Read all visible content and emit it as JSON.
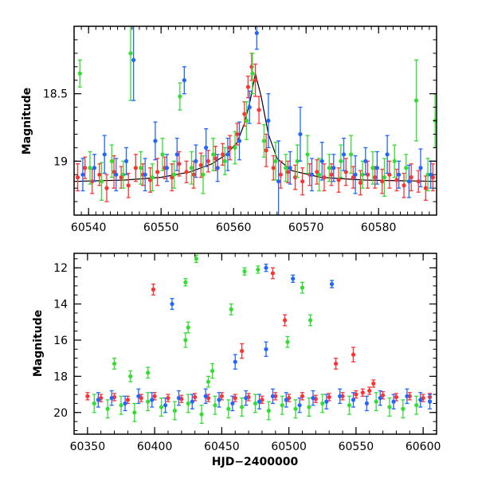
{
  "chart_data": [
    {
      "type": "scatter",
      "title": "",
      "xlabel": "",
      "ylabel": "Magnitude",
      "xlim": [
        60538,
        60588
      ],
      "ylim": [
        19.4,
        18.0
      ],
      "y_inverted": true,
      "grid": false,
      "legend": "none",
      "xticks": [
        60540,
        60550,
        60560,
        60570,
        60580
      ],
      "yticks": [
        18.5,
        19
      ],
      "ytick_labels": [
        "18.5",
        "19"
      ],
      "series": [
        {
          "color": "#ff3333",
          "x": [
            60538.5,
            60539.5,
            60540.5,
            60541.5,
            60542.5,
            60543.5,
            60544.5,
            60545.5,
            60546.5,
            60547.5,
            60548.5,
            60549.5,
            60550.5,
            60551.5,
            60552.5,
            60553.5,
            60554.5,
            60555.5,
            60556.5,
            60557.5,
            60558.5,
            60559.5,
            60560.5,
            60561.5,
            60562.0,
            60562.5,
            60563.0,
            60563.5,
            60564.5,
            60565.5,
            60566.5,
            60567.5,
            60568.5,
            60569.5,
            60570.5,
            60571.5,
            60572.5,
            60573.5,
            60574.5,
            60575.5,
            60576.5,
            60577.5,
            60578.5,
            60579.5,
            60580.5,
            60581.5,
            60582.5,
            60583.5,
            60584.5,
            60585.5,
            60586.5,
            60587.5
          ],
          "y": [
            19.12,
            19.05,
            19.15,
            19.1,
            19.2,
            19.08,
            19.12,
            19.18,
            19.05,
            19.1,
            19.14,
            19.08,
            19.05,
            19.12,
            19.02,
            19.08,
            19.1,
            19.03,
            19.0,
            18.98,
            18.95,
            18.9,
            18.8,
            18.65,
            18.45,
            18.3,
            18.4,
            18.62,
            18.92,
            19.05,
            19.1,
            19.08,
            19.12,
            19.15,
            19.1,
            19.08,
            19.12,
            19.1,
            19.14,
            19.08,
            19.12,
            19.16,
            19.1,
            19.12,
            19.15,
            19.1,
            19.14,
            19.18,
            19.12,
            19.15,
            19.2,
            19.12
          ],
          "yerr": [
            0.1,
            0.08,
            0.09,
            0.08,
            0.1,
            0.12,
            0.08,
            0.09,
            0.1,
            0.08,
            0.09,
            0.1,
            0.08,
            0.1,
            0.09,
            0.08,
            0.1,
            0.09,
            0.08,
            0.09,
            0.08,
            0.09,
            0.08,
            0.09,
            0.08,
            0.1,
            0.12,
            0.1,
            0.12,
            0.09,
            0.1,
            0.08,
            0.09,
            0.1,
            0.08,
            0.09,
            0.1,
            0.08,
            0.09,
            0.1,
            0.08,
            0.09,
            0.1,
            0.08,
            0.09,
            0.1,
            0.08,
            0.09,
            0.1,
            0.08,
            0.09,
            0.1
          ]
        },
        {
          "color": "#33dd33",
          "x": [
            60538.8,
            60540.2,
            60541.8,
            60543.2,
            60544.8,
            60545.8,
            60547.2,
            60548.8,
            60550.2,
            60551.8,
            60552.6,
            60554.2,
            60555.8,
            60557.2,
            60558.8,
            60560.2,
            60561.8,
            60562.6,
            60564.2,
            60565.8,
            60567.2,
            60568.8,
            60570.2,
            60571.8,
            60573.2,
            60574.8,
            60576.2,
            60577.8,
            60579.2,
            60580.8,
            60582.2,
            60583.8,
            60585.2,
            60586.8,
            60587.8
          ],
          "y": [
            18.35,
            19.05,
            19.15,
            19.0,
            19.1,
            18.2,
            19.05,
            19.12,
            18.95,
            19.1,
            18.52,
            19.05,
            19.1,
            18.95,
            19.0,
            18.9,
            18.7,
            18.35,
            18.85,
            19.0,
            19.05,
            19.0,
            18.95,
            19.1,
            19.05,
            19.0,
            18.95,
            19.1,
            19.05,
            19.12,
            19.0,
            19.05,
            18.55,
            19.1,
            18.7
          ],
          "yerr": [
            0.1,
            0.12,
            0.14,
            0.12,
            0.1,
            0.35,
            0.12,
            0.1,
            0.12,
            0.1,
            0.1,
            0.12,
            0.14,
            0.12,
            0.1,
            0.12,
            0.14,
            0.15,
            0.12,
            0.14,
            0.1,
            0.12,
            0.14,
            0.12,
            0.1,
            0.12,
            0.14,
            0.1,
            0.12,
            0.14,
            0.12,
            0.1,
            0.3,
            0.12,
            0.2
          ]
        },
        {
          "color": "#2266ff",
          "x": [
            60539.2,
            60540.8,
            60542.2,
            60543.8,
            60545.2,
            60546.2,
            60547.8,
            60549.2,
            60550.8,
            60552.2,
            60553.2,
            60554.8,
            60556.2,
            60557.8,
            60559.2,
            60560.8,
            60562.2,
            60563.2,
            60564.8,
            60566.2,
            60567.8,
            60569.2,
            60570.8,
            60572.2,
            60573.8,
            60575.2,
            60576.8,
            60578.2,
            60579.8,
            60581.2,
            60582.8,
            60584.2,
            60585.8,
            60587.2
          ],
          "y": [
            19.1,
            19.05,
            18.95,
            19.1,
            19.0,
            18.25,
            19.1,
            18.85,
            19.05,
            18.95,
            18.4,
            19.0,
            18.9,
            19.05,
            18.95,
            18.85,
            18.6,
            18.05,
            18.7,
            19.15,
            19.05,
            18.8,
            19.1,
            19.0,
            19.05,
            18.95,
            19.1,
            19.0,
            19.05,
            18.95,
            19.1,
            19.15,
            19.05,
            19.1
          ],
          "yerr": [
            0.12,
            0.1,
            0.14,
            0.12,
            0.1,
            0.3,
            0.12,
            0.14,
            0.1,
            0.12,
            0.1,
            0.12,
            0.14,
            0.1,
            0.12,
            0.14,
            0.12,
            0.12,
            0.2,
            0.3,
            0.12,
            0.2,
            0.12,
            0.14,
            0.1,
            0.12,
            0.14,
            0.1,
            0.12,
            0.14,
            0.1,
            0.12,
            0.14,
            0.1
          ]
        }
      ],
      "model_curve": {
        "color": "#000000",
        "x": [
          60538,
          60545,
          60550,
          60554,
          60557,
          60559,
          60560.5,
          60561.5,
          60562.3,
          60563.0,
          60563.8,
          60564.8,
          60566,
          60568,
          60572,
          60578,
          60588
        ],
        "y": [
          19.15,
          19.14,
          19.12,
          19.08,
          19.02,
          18.95,
          18.86,
          18.72,
          18.55,
          18.35,
          18.52,
          18.8,
          18.98,
          19.07,
          19.12,
          19.14,
          19.15
        ]
      }
    },
    {
      "type": "scatter",
      "title": "",
      "xlabel": "HJD−2400000",
      "ylabel": "Magnitude",
      "xlim": [
        60340,
        60610
      ],
      "ylim": [
        21.2,
        11.2
      ],
      "y_inverted": true,
      "grid": false,
      "legend": "none",
      "xticks": [
        60350,
        60400,
        60450,
        60500,
        60550,
        60600
      ],
      "yticks": [
        12,
        14,
        16,
        18,
        20
      ],
      "ytick_labels": [
        "12",
        "14",
        "16",
        "18",
        "20"
      ],
      "series": [
        {
          "color": "#ff3333",
          "x": [
            60350,
            60360,
            60370,
            60380,
            60390,
            60400,
            60410,
            60420,
            60430,
            60440,
            60450,
            60460,
            60470,
            60480,
            60490,
            60500,
            60510,
            60520,
            60530,
            60540,
            60550,
            60555,
            60560,
            60563,
            60570,
            60580,
            60590,
            60600,
            60605,
            60399,
            60465,
            60488,
            60497,
            60535,
            60548
          ],
          "y": [
            19.1,
            19.2,
            19.15,
            19.3,
            19.2,
            19.1,
            19.2,
            19.25,
            19.15,
            19.2,
            19.1,
            19.2,
            19.15,
            19.3,
            19.1,
            19.2,
            19.1,
            19.25,
            19.15,
            19.1,
            19.0,
            18.9,
            18.8,
            18.4,
            19.05,
            19.15,
            19.1,
            19.2,
            19.15,
            13.2,
            16.6,
            12.3,
            14.9,
            17.3,
            16.8
          ],
          "yerr": [
            0.2,
            0.2,
            0.2,
            0.2,
            0.2,
            0.2,
            0.2,
            0.2,
            0.2,
            0.2,
            0.2,
            0.2,
            0.2,
            0.2,
            0.2,
            0.2,
            0.2,
            0.2,
            0.2,
            0.2,
            0.2,
            0.2,
            0.2,
            0.2,
            0.2,
            0.2,
            0.2,
            0.2,
            0.2,
            0.3,
            0.4,
            0.3,
            0.3,
            0.3,
            0.4
          ]
        },
        {
          "color": "#33dd33",
          "x": [
            60355,
            60365,
            60375,
            60385,
            60395,
            60405,
            60415,
            60425,
            60435,
            60445,
            60455,
            60465,
            60475,
            60485,
            60495,
            60505,
            60515,
            60525,
            60545,
            60565,
            60575,
            60585,
            60595,
            60423,
            60423,
            60431,
            60440,
            60467,
            60477,
            60510,
            60499,
            60425,
            60457,
            60516,
            60443,
            60370,
            60382,
            60395
          ],
          "y": [
            19.5,
            19.8,
            19.6,
            20.0,
            19.4,
            19.7,
            19.9,
            19.5,
            20.1,
            19.6,
            19.8,
            19.7,
            19.5,
            19.9,
            19.6,
            19.8,
            19.7,
            19.5,
            19.6,
            19.4,
            19.7,
            19.8,
            19.6,
            12.8,
            16.0,
            11.5,
            18.3,
            12.2,
            12.1,
            13.1,
            16.1,
            15.3,
            14.3,
            14.9,
            17.7,
            17.3,
            18.0,
            17.8
          ],
          "yerr": [
            0.5,
            0.5,
            0.5,
            0.5,
            0.5,
            0.5,
            0.5,
            0.5,
            0.5,
            0.5,
            0.5,
            0.5,
            0.5,
            0.5,
            0.5,
            0.5,
            0.5,
            0.5,
            0.5,
            0.5,
            0.5,
            0.5,
            0.5,
            0.2,
            0.4,
            0.2,
            0.3,
            0.2,
            0.2,
            0.3,
            0.3,
            0.3,
            0.3,
            0.3,
            0.4,
            0.3,
            0.3,
            0.3
          ]
        },
        {
          "color": "#2266ff",
          "x": [
            60358,
            60368,
            60378,
            60388,
            60398,
            60408,
            60418,
            60428,
            60438,
            60448,
            60458,
            60468,
            60478,
            60488,
            60498,
            60508,
            60518,
            60528,
            60538,
            60548,
            60558,
            60568,
            60578,
            60588,
            60598,
            60605,
            60483,
            60503,
            60532,
            60413,
            60483,
            60460
          ],
          "y": [
            19.3,
            19.2,
            19.5,
            19.1,
            19.3,
            19.6,
            19.2,
            19.4,
            19.1,
            19.3,
            19.5,
            19.2,
            19.4,
            19.1,
            19.3,
            19.6,
            19.2,
            19.4,
            19.1,
            19.3,
            19.5,
            19.2,
            19.4,
            19.1,
            19.3,
            19.4,
            12.0,
            12.6,
            12.9,
            14.0,
            16.5,
            17.2
          ],
          "yerr": [
            0.4,
            0.4,
            0.4,
            0.4,
            0.4,
            0.4,
            0.4,
            0.4,
            0.4,
            0.4,
            0.4,
            0.4,
            0.4,
            0.4,
            0.4,
            0.4,
            0.4,
            0.4,
            0.4,
            0.4,
            0.4,
            0.4,
            0.4,
            0.4,
            0.4,
            0.4,
            0.2,
            0.2,
            0.2,
            0.3,
            0.4,
            0.4
          ]
        }
      ]
    }
  ]
}
